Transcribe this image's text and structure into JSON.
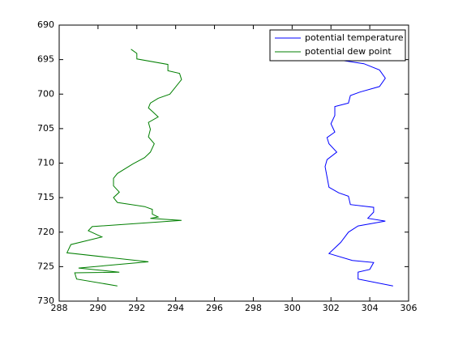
{
  "chart_data": {
    "type": "line",
    "xlim": [
      288,
      306
    ],
    "xticks": [
      288,
      290,
      292,
      294,
      296,
      298,
      300,
      302,
      304,
      306
    ],
    "ylim": [
      690,
      730
    ],
    "yticks": [
      690,
      695,
      700,
      705,
      710,
      715,
      720,
      725,
      730
    ],
    "y_reversed": true,
    "grid": false,
    "legend": "top-right",
    "series": [
      {
        "name": "potential temperature",
        "color": "#0000ff",
        "values": [
          302.3,
          303.7,
          304.5,
          304.8,
          304.5,
          303.5,
          303.0,
          302.9,
          302.2,
          302.2,
          302.0,
          302.2,
          301.8,
          301.9,
          302.3,
          301.8,
          301.7,
          301.8,
          301.9,
          302.4,
          302.9,
          303.0,
          304.2,
          304.2,
          303.9,
          304.8,
          303.4,
          302.9,
          302.5,
          301.9,
          303.1,
          304.2,
          304.0,
          303.4,
          303.4,
          305.2
        ],
        "y": [
          695.0,
          695.6,
          696.5,
          697.7,
          698.9,
          699.7,
          700.2,
          701.3,
          701.8,
          703.1,
          704.3,
          705.5,
          706.3,
          707.2,
          708.4,
          709.5,
          710.5,
          712.0,
          713.5,
          714.3,
          714.8,
          716.0,
          716.4,
          717.1,
          718.0,
          718.4,
          719.1,
          720.0,
          721.5,
          723.1,
          724.1,
          724.4,
          725.4,
          725.8,
          726.8,
          727.8
        ]
      },
      {
        "name": "potential dew point",
        "color": "#007f00",
        "values": [
          291.7,
          292.0,
          292.0,
          293.6,
          293.6,
          294.2,
          294.3,
          293.7,
          293.1,
          292.7,
          292.6,
          292.8,
          293.1,
          292.6,
          292.7,
          292.6,
          292.9,
          292.7,
          292.4,
          291.8,
          291.0,
          290.8,
          290.8,
          291.1,
          290.8,
          291.0,
          292.4,
          292.8,
          292.8,
          293.1,
          292.7,
          294.3,
          289.7,
          289.5,
          290.2,
          288.6,
          288.4,
          292.6,
          289.0,
          291.1,
          288.8,
          288.9,
          291.0
        ],
        "y": [
          693.5,
          694.1,
          694.9,
          695.7,
          696.6,
          697.0,
          697.9,
          700.0,
          700.6,
          701.3,
          702.0,
          702.5,
          703.3,
          704.1,
          705.1,
          706.2,
          707.2,
          708.4,
          709.2,
          710.1,
          711.5,
          712.2,
          713.3,
          714.2,
          715.0,
          715.7,
          716.3,
          716.7,
          717.4,
          717.8,
          718.0,
          718.3,
          719.2,
          719.8,
          720.7,
          721.8,
          723.0,
          724.3,
          725.2,
          725.8,
          725.9,
          726.8,
          727.8
        ]
      }
    ]
  }
}
